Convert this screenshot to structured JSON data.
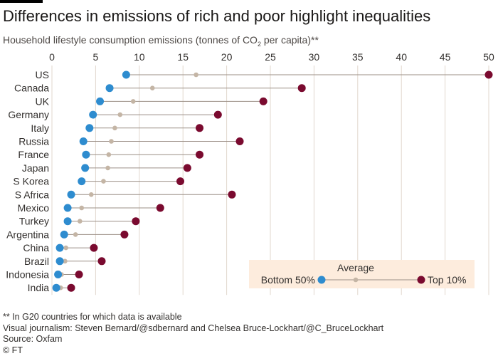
{
  "header": {
    "title": "Differences in emissions of rich and poor highlight inequalities",
    "subtitle_prefix": "Household lifestyle consumption emissions (tonnes of CO",
    "subtitle_sub": "2",
    "subtitle_suffix": " per capita)**"
  },
  "chart_data": {
    "type": "dot-range",
    "orientation": "horizontal",
    "title": "Differences in emissions of rich and poor highlight inequalities",
    "xlabel": "Household lifestyle consumption emissions (tonnes of CO2 per capita)**",
    "xlim": [
      0,
      50
    ],
    "x_ticks": [
      0,
      5,
      10,
      15,
      20,
      25,
      30,
      35,
      40,
      45,
      50
    ],
    "x_axis_position": "top",
    "grid": true,
    "categories": [
      "US",
      "Canada",
      "UK",
      "Germany",
      "Italy",
      "Russia",
      "France",
      "Japan",
      "S Korea",
      "S Africa",
      "Mexico",
      "Turkey",
      "Argentina",
      "China",
      "Brazil",
      "Indonesia",
      "India"
    ],
    "series": [
      {
        "name": "Bottom 50%",
        "color": "#2e8ccf",
        "values": [
          8.5,
          6.6,
          5.5,
          4.7,
          4.3,
          3.6,
          3.9,
          3.8,
          3.4,
          2.2,
          1.8,
          1.8,
          1.4,
          0.9,
          0.9,
          0.7,
          0.5
        ]
      },
      {
        "name": "Average",
        "color": "#c4b5a5",
        "values": [
          16.5,
          11.5,
          9.3,
          7.8,
          7.2,
          6.8,
          6.5,
          6.4,
          5.9,
          4.5,
          3.4,
          3.2,
          2.7,
          1.6,
          1.5,
          1.1,
          1.0
        ]
      },
      {
        "name": "Top 10%",
        "color": "#7a0a2f",
        "values": [
          50.0,
          28.6,
          24.2,
          19.0,
          16.9,
          21.5,
          16.9,
          15.5,
          14.7,
          20.6,
          12.4,
          9.6,
          8.3,
          4.8,
          5.7,
          3.1,
          2.2
        ]
      }
    ],
    "legend": {
      "placement": "bottom-right",
      "average_label": "Average",
      "bottom_label": "Bottom 50%",
      "top_label": "Top 10%",
      "background": "#fdecdd"
    },
    "colors": {
      "grid": "#e1d7ce",
      "connector": "#9b8f86",
      "label": "#33302e"
    }
  },
  "footer": {
    "note": "** In G20 countries for which data is available",
    "credit": "Visual journalism: Steven Bernard/@sdbernard and Chelsea Bruce-Lockhart/@C_BruceLockhart",
    "source": "Source: Oxfam",
    "copyright": "© FT"
  }
}
